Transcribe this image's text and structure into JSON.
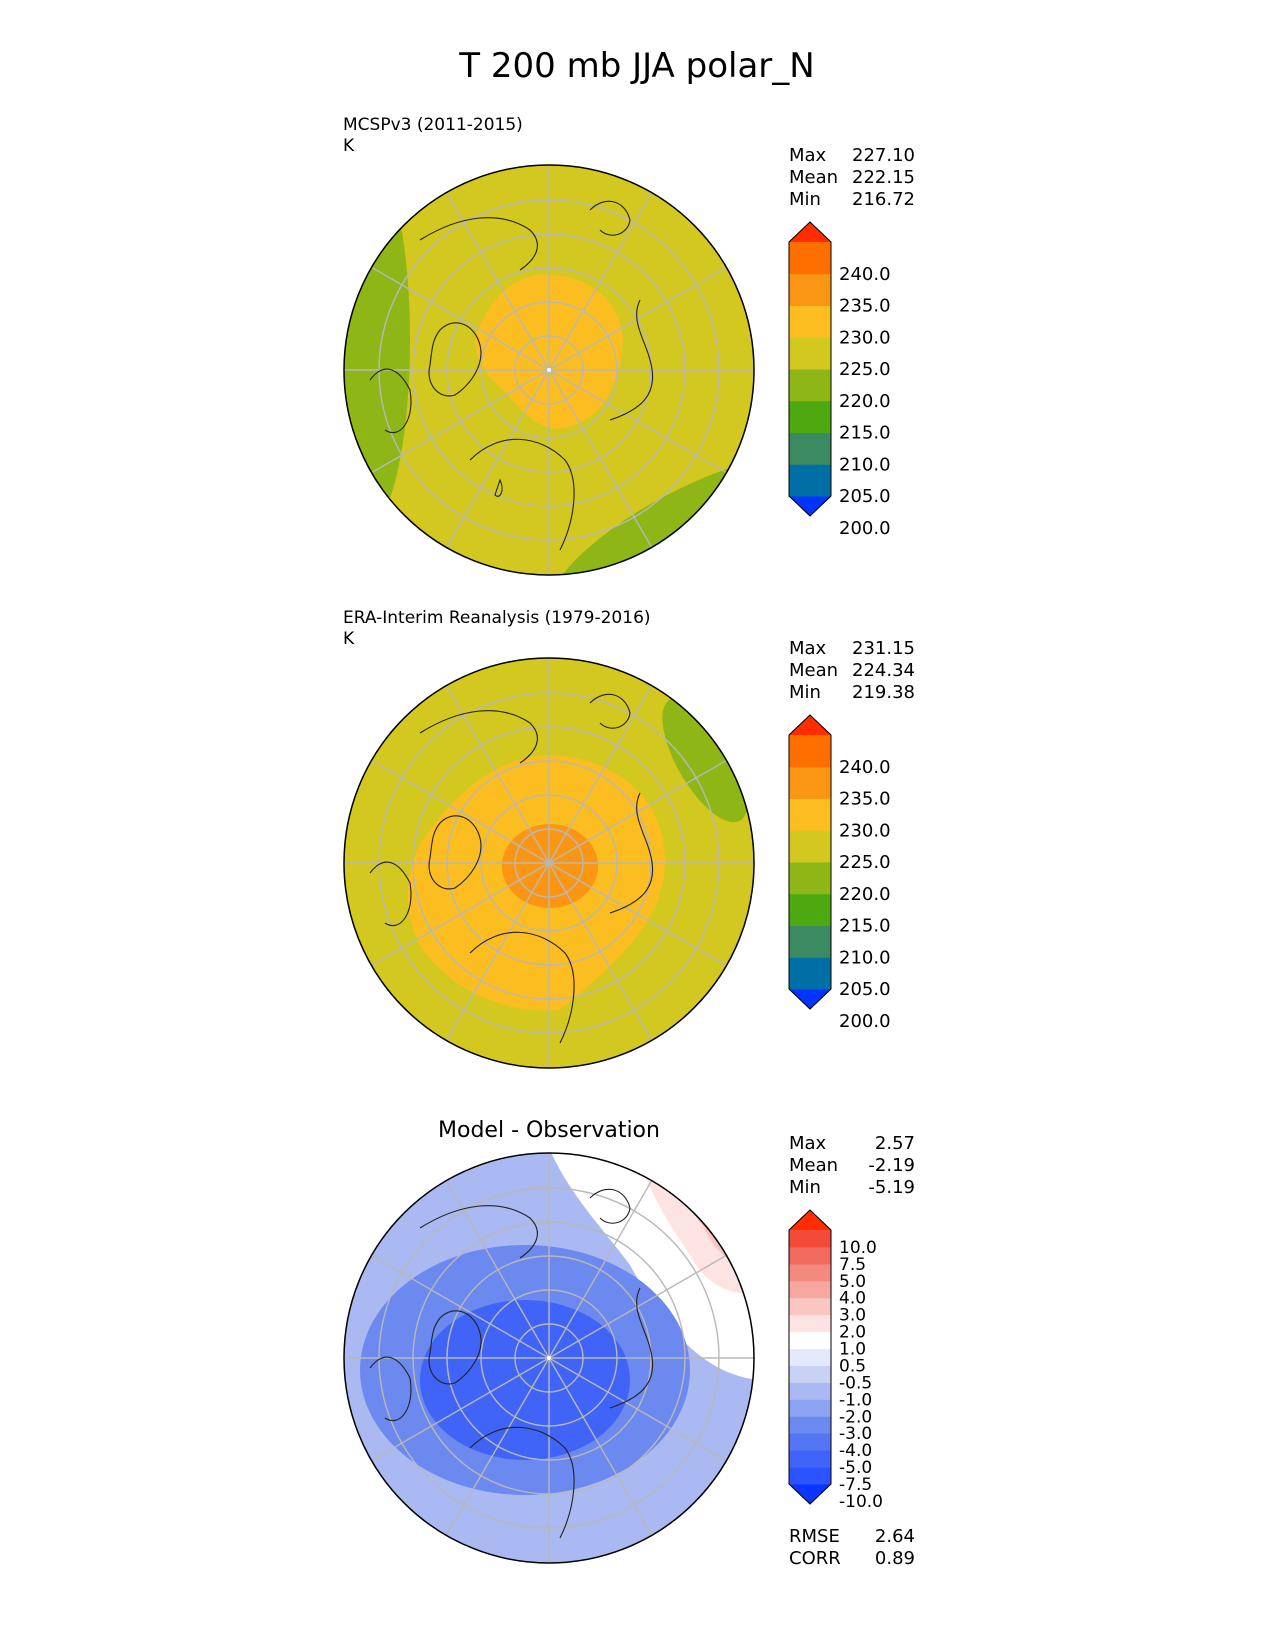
{
  "figure_title": "T 200 mb JJA polar_N",
  "panels": [
    {
      "id": "model",
      "title_left": "MCSPv3 (2011-2015)",
      "units": "K",
      "title_center": "",
      "stats": [
        {
          "label": "Max",
          "value": "227.10"
        },
        {
          "label": "Mean",
          "value": "222.15"
        },
        {
          "label": "Min",
          "value": "216.72"
        }
      ],
      "colorbar": {
        "tick_labels": [
          "240.0",
          "235.0",
          "230.0",
          "225.0",
          "220.0",
          "215.0",
          "210.0",
          "205.0",
          "200.0"
        ],
        "colors": [
          "#0035ff",
          "#006fa5",
          "#3b8a62",
          "#4ea80f",
          "#8fb617",
          "#d2c81f",
          "#fbbd20",
          "#fa9614",
          "#ff6f00",
          "#ff2d00"
        ]
      },
      "extra_stats": []
    },
    {
      "id": "obs",
      "title_left": "ERA-Interim Reanalysis (1979-2016)",
      "units": "K",
      "title_center": "",
      "stats": [
        {
          "label": "Max",
          "value": "231.15"
        },
        {
          "label": "Mean",
          "value": "224.34"
        },
        {
          "label": "Min",
          "value": "219.38"
        }
      ],
      "colorbar": {
        "tick_labels": [
          "240.0",
          "235.0",
          "230.0",
          "225.0",
          "220.0",
          "215.0",
          "210.0",
          "205.0",
          "200.0"
        ],
        "colors": [
          "#0035ff",
          "#006fa5",
          "#3b8a62",
          "#4ea80f",
          "#8fb617",
          "#d2c81f",
          "#fbbd20",
          "#fa9614",
          "#ff6f00",
          "#ff2d00"
        ]
      },
      "extra_stats": []
    },
    {
      "id": "diff",
      "title_left": "",
      "units": "",
      "title_center": "Model - Observation",
      "stats": [
        {
          "label": "Max",
          "value": "2.57"
        },
        {
          "label": "Mean",
          "value": "-2.19"
        },
        {
          "label": "Min",
          "value": "-5.19"
        }
      ],
      "colorbar": {
        "tick_labels": [
          "10.0",
          "7.5",
          "5.0",
          "4.0",
          "3.0",
          "2.0",
          "1.0",
          "0.5",
          "-0.5",
          "-1.0",
          "-2.0",
          "-3.0",
          "-4.0",
          "-5.0",
          "-7.5",
          "-10.0"
        ],
        "colors": [
          "#0a36ff",
          "#2b53ff",
          "#3f64f7",
          "#5476f2",
          "#6b89ef",
          "#8ba3f0",
          "#aab9f2",
          "#c7d2f5",
          "#e4e9fb",
          "#ffffff",
          "#fde4e2",
          "#f9c6c1",
          "#f6a8a0",
          "#f38a7f",
          "#f16a5e",
          "#f34a39",
          "#ff2d00"
        ]
      },
      "extra_stats": [
        {
          "label": "RMSE",
          "value": "2.64"
        },
        {
          "label": "CORR",
          "value": "0.89"
        }
      ]
    }
  ],
  "chart_data": [
    {
      "type": "heatmap",
      "projection": "north-polar-stereographic",
      "title": "MCSPv3 (2011-2015)",
      "units": "K",
      "levels": [
        200.0,
        205.0,
        210.0,
        215.0,
        220.0,
        225.0,
        230.0,
        235.0,
        240.0
      ],
      "stats": {
        "max": 227.1,
        "mean": 222.15,
        "min": 216.72
      },
      "fields": [
        {
          "feature": "background",
          "value": 222.5
        },
        {
          "feature": "pole-warm-core",
          "value": 226.0
        },
        {
          "feature": "outer-cool-band-west",
          "value": 218.0
        },
        {
          "feature": "outer-cool-band-south-east",
          "value": 218.0
        }
      ]
    },
    {
      "type": "heatmap",
      "projection": "north-polar-stereographic",
      "title": "ERA-Interim Reanalysis (1979-2016)",
      "units": "K",
      "levels": [
        200.0,
        205.0,
        210.0,
        215.0,
        220.0,
        225.0,
        230.0,
        235.0,
        240.0
      ],
      "stats": {
        "max": 231.15,
        "mean": 224.34,
        "min": 219.38
      },
      "fields": [
        {
          "feature": "background",
          "value": 222.5
        },
        {
          "feature": "warm-ring",
          "value": 227.5
        },
        {
          "feature": "pole-core",
          "value": 231.0
        },
        {
          "feature": "cool-patch-north-east",
          "value": 219.5
        }
      ]
    },
    {
      "type": "heatmap",
      "projection": "north-polar-stereographic",
      "title": "Model - Observation",
      "units": "",
      "levels": [
        -10.0,
        -7.5,
        -5.0,
        -4.0,
        -3.0,
        -2.0,
        -1.0,
        -0.5,
        0.5,
        1.0,
        2.0,
        3.0,
        4.0,
        5.0,
        7.5,
        10.0
      ],
      "stats": {
        "max": 2.57,
        "mean": -2.19,
        "min": -5.19,
        "rmse": 2.64,
        "corr": 0.89
      },
      "fields": [
        {
          "feature": "background",
          "value": -1.5
        },
        {
          "feature": "moderate-negative-ring",
          "value": -2.5
        },
        {
          "feature": "strong-negative-core",
          "value": -4.5
        },
        {
          "feature": "positive-patch-north-east",
          "value": 2.0
        },
        {
          "feature": "weak-positive-patch-north-east",
          "value": 0.8
        },
        {
          "feature": "near-zero-north",
          "value": 0.0
        }
      ]
    }
  ]
}
